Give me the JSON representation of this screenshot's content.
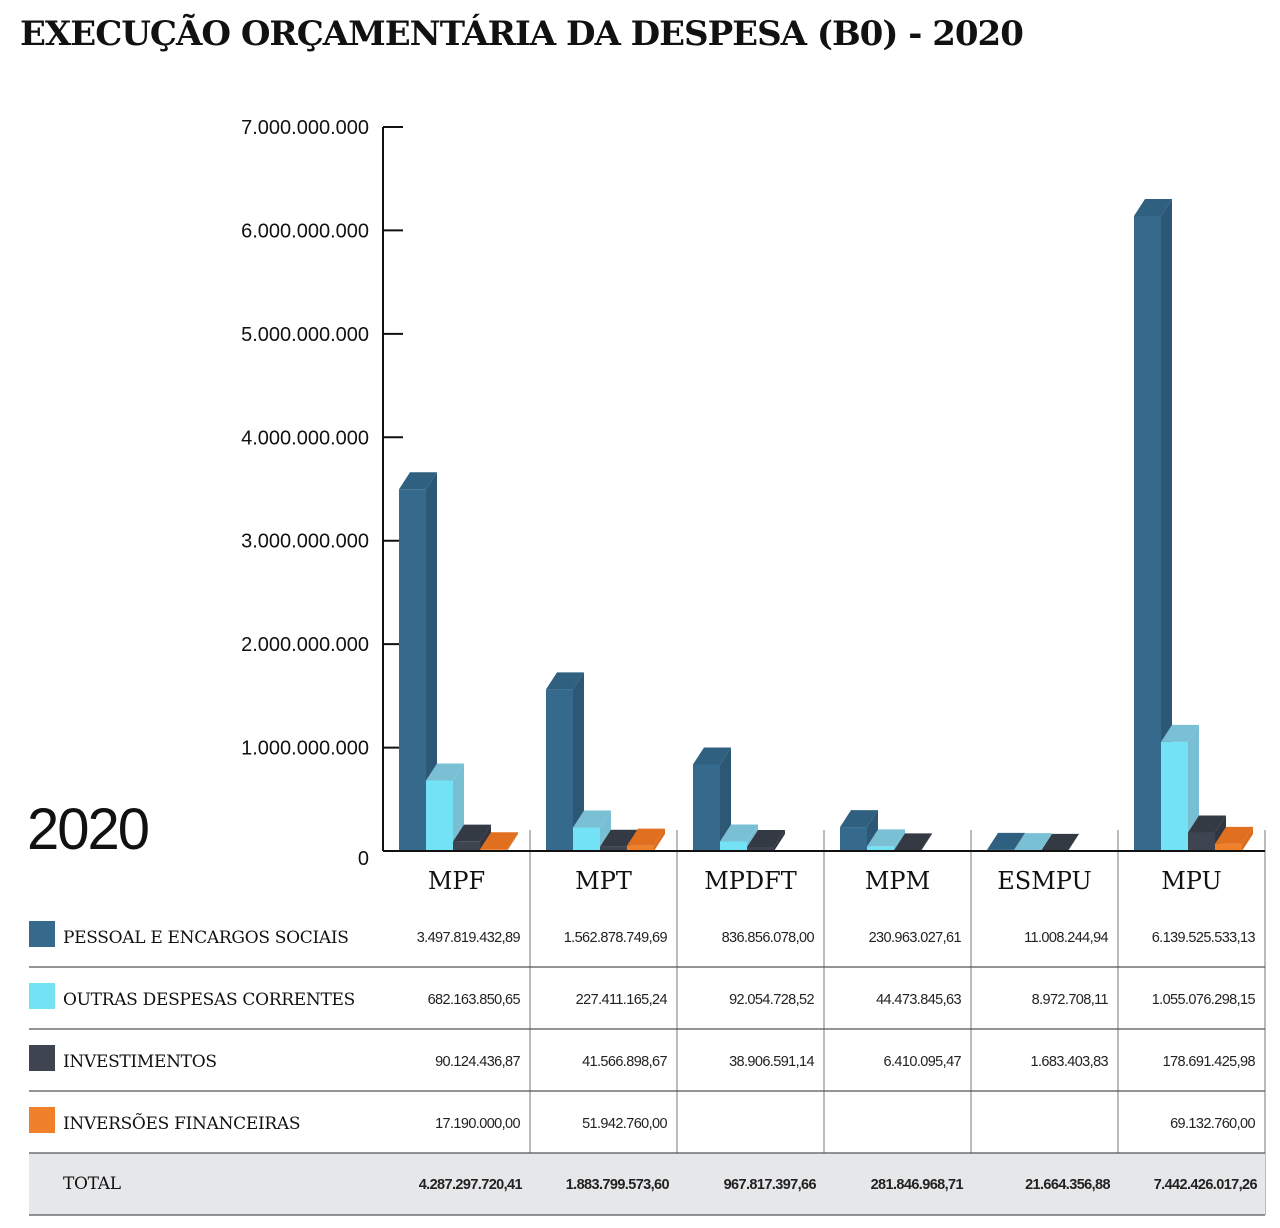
{
  "title": "EXECUÇÃO ORÇAMENTÁRIA DA DESPESA (B0) - 2020",
  "year_label": "2020",
  "colors": {
    "pessoal": "#356a8c",
    "outras": "#73e2f5",
    "investimentos": "#3e4550",
    "inversoes": "#f0802a",
    "total_bg": "#e6e7e9"
  },
  "chart_data": {
    "type": "bar",
    "style": "3d-grouped",
    "title": "EXECUÇÃO ORÇAMENTÁRIA DA DESPESA (B0) - 2020",
    "categories": [
      "MPF",
      "MPT",
      "MPDFT",
      "MPM",
      "ESMPU",
      "MPU"
    ],
    "ylim": [
      0,
      7000000000
    ],
    "yticks": [
      "0",
      "1.000.000.000",
      "2.000.000.000",
      "3.000.000.000",
      "4.000.000.000",
      "5.000.000.000",
      "6.000.000.000",
      "7.000.000.000"
    ],
    "legend": "table-below",
    "series": [
      {
        "name": "PESSOAL E ENCARGOS SOCIAIS",
        "color": "#356a8c",
        "values": [
          3497819432.89,
          1562878749.69,
          836856078.0,
          230963027.61,
          11008244.94,
          6139525533.13
        ],
        "labels": [
          "3.497.819.432,89",
          "1.562.878.749,69",
          "836.856.078,00",
          "230.963.027,61",
          "11.008.244,94",
          "6.139.525.533,13"
        ]
      },
      {
        "name": "OUTRAS DESPESAS CORRENTES",
        "color": "#73e2f5",
        "values": [
          682163850.65,
          227411165.24,
          92054728.52,
          44473845.63,
          8972708.11,
          1055076298.15
        ],
        "labels": [
          "682.163.850,65",
          "227.411.165,24",
          "92.054.728,52",
          "44.473.845,63",
          "8.972.708,11",
          "1.055.076.298,15"
        ]
      },
      {
        "name": "INVESTIMENTOS",
        "color": "#3e4550",
        "values": [
          90124436.87,
          41566898.67,
          38906591.14,
          6410095.47,
          1683403.83,
          178691425.98
        ],
        "labels": [
          "90.124.436,87",
          "41.566.898,67",
          "38.906.591,14",
          "6.410.095,47",
          "1.683.403,83",
          "178.691.425,98"
        ]
      },
      {
        "name": "INVERSÕES FINANCEIRAS",
        "color": "#f0802a",
        "values": [
          17190000.0,
          51942760.0,
          null,
          null,
          null,
          69132760.0
        ],
        "labels": [
          "17.190.000,00",
          "51.942.760,00",
          "",
          "",
          "",
          "69.132.760,00"
        ]
      }
    ],
    "total": {
      "name": "TOTAL",
      "labels": [
        "4.287.297.720,41",
        "1.883.799.573,60",
        "967.817.397,66",
        "281.846.968,71",
        "21.664.356,88",
        "7.442.426.017,26"
      ]
    }
  }
}
